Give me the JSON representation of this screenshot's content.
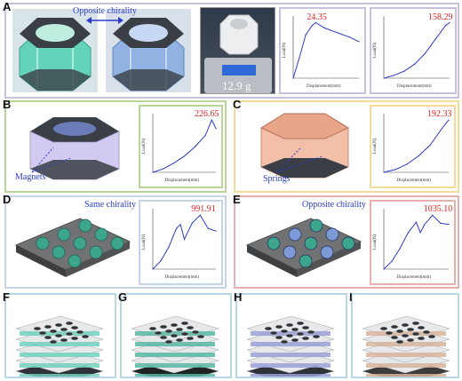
{
  "labels": {
    "a": "A",
    "b": "B",
    "c": "C",
    "d": "D",
    "e": "E",
    "f": "F",
    "g": "G",
    "h": "H",
    "i": "I"
  },
  "annotations": {
    "opposite_chirality_a": "Opposite chirality",
    "mass": "12.9 g",
    "magnets": "Magnets",
    "springs": "Springs",
    "same_chirality": "Same chirality",
    "opposite_chirality_e": "Opposite chirality"
  },
  "colors": {
    "panel_a_border": "#c9c0dd",
    "panel_b_border": "#b9d59a",
    "panel_c_border": "#f0dc94",
    "panel_d_border": "#c6d4ea",
    "panel_e_border": "#e7b0ae",
    "panel_f_border": "#b8d8e3",
    "curve": "#2b3cc8",
    "peak": "#e01f1f"
  },
  "chart_data": [
    {
      "id": "A1",
      "type": "line",
      "peak_label": "24.35",
      "xlabel": "Displacement(mm)",
      "ylabel": "Load(N)",
      "x": [
        0,
        1,
        2,
        3,
        3.6,
        5,
        7,
        9,
        10.5
      ],
      "y": [
        0,
        9,
        19,
        23,
        24.35,
        22,
        20,
        18,
        16
      ]
    },
    {
      "id": "A2",
      "type": "line",
      "peak_label": "158.29",
      "xlabel": "Displacement(mm)",
      "ylabel": "Load(N)",
      "x": [
        0,
        0.5,
        1,
        1.5,
        2,
        2.5,
        3,
        3.2
      ],
      "y": [
        0,
        8,
        20,
        40,
        70,
        110,
        150,
        158.29
      ]
    },
    {
      "id": "B",
      "type": "line",
      "peak_label": "226.65",
      "xlabel": "Displacement(mm)",
      "ylabel": "Load(N)",
      "x": [
        0,
        1,
        2,
        3,
        4,
        5,
        5.6,
        6
      ],
      "y": [
        0,
        15,
        40,
        70,
        110,
        160,
        226.65,
        190
      ]
    },
    {
      "id": "C",
      "type": "line",
      "peak_label": "192.33",
      "xlabel": "Displacement(mm)",
      "ylabel": "Load(N)",
      "x": [
        0,
        1,
        2,
        3,
        4,
        5,
        5.6
      ],
      "y": [
        0,
        10,
        30,
        60,
        100,
        160,
        192.33
      ]
    },
    {
      "id": "D",
      "type": "line",
      "peak_label": "991.91",
      "xlabel": "Displacement(mm)",
      "ylabel": "Load(N)",
      "x": [
        0,
        1,
        2,
        3,
        3.5,
        4,
        5,
        6,
        7,
        8
      ],
      "y": [
        0,
        150,
        400,
        750,
        820,
        550,
        850,
        991.91,
        750,
        700
      ]
    },
    {
      "id": "E",
      "type": "line",
      "peak_label": "1035.10",
      "xlabel": "Displacement(mm)",
      "ylabel": "Load(N)",
      "x": [
        0,
        1,
        2,
        3,
        4,
        4.5,
        5,
        6,
        7,
        8
      ],
      "y": [
        0,
        150,
        400,
        700,
        900,
        700,
        850,
        1035.1,
        880,
        860
      ]
    }
  ]
}
